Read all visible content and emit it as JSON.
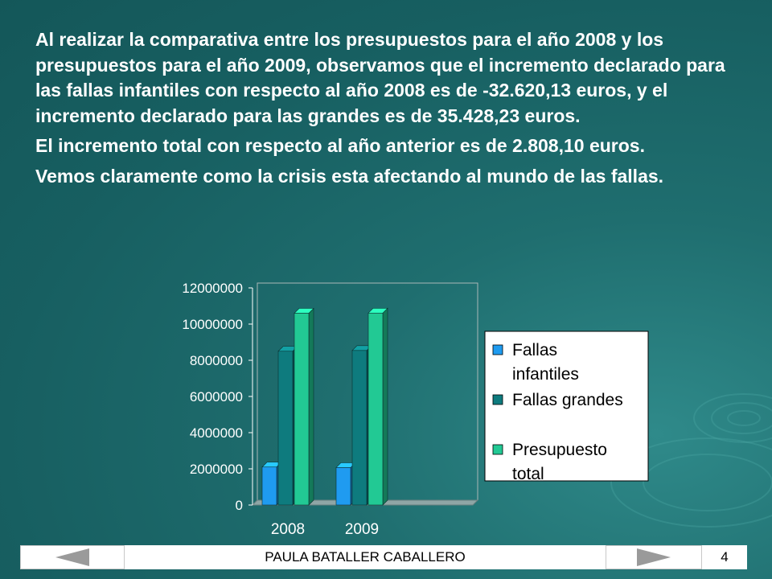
{
  "paragraphs": [
    "Al realizar la comparativa entre los presupuestos para el año 2008 y los presupuestos para el año 2009, observamos que el incremento declarado para las fallas infantiles con respecto al año 2008 es de -32.620,13 euros, y el incremento declarado para las grandes es de 35.428,23 euros.",
    "El incremento total con respecto al año anterior es de 2.808,10 euros.",
    "Vemos claramente como la crisis esta afectando al mundo de las fallas."
  ],
  "footer": {
    "author": "PAULA BATALLER CABALLERO",
    "page_number": "4"
  },
  "colors": {
    "fallas_infantiles": "#1f9bf0",
    "fallas_grandes": "#0e7b7e",
    "presupuesto_total": "#22c994"
  },
  "chart_data": {
    "type": "bar",
    "style": "3d-clustered",
    "categories": [
      "2008",
      "2009"
    ],
    "series": [
      {
        "name": "Fallas infantiles",
        "values": [
          2100000,
          2070000
        ]
      },
      {
        "name": "Fallas grandes",
        "values": [
          8500000,
          8540000
        ]
      },
      {
        "name": "Presupuesto total",
        "values": [
          10600000,
          10610000
        ]
      }
    ],
    "y_ticks": [
      "0",
      "2000000",
      "4000000",
      "6000000",
      "8000000",
      "10000000",
      "12000000"
    ],
    "ylim": [
      0,
      12000000
    ],
    "legend_position": "right"
  }
}
